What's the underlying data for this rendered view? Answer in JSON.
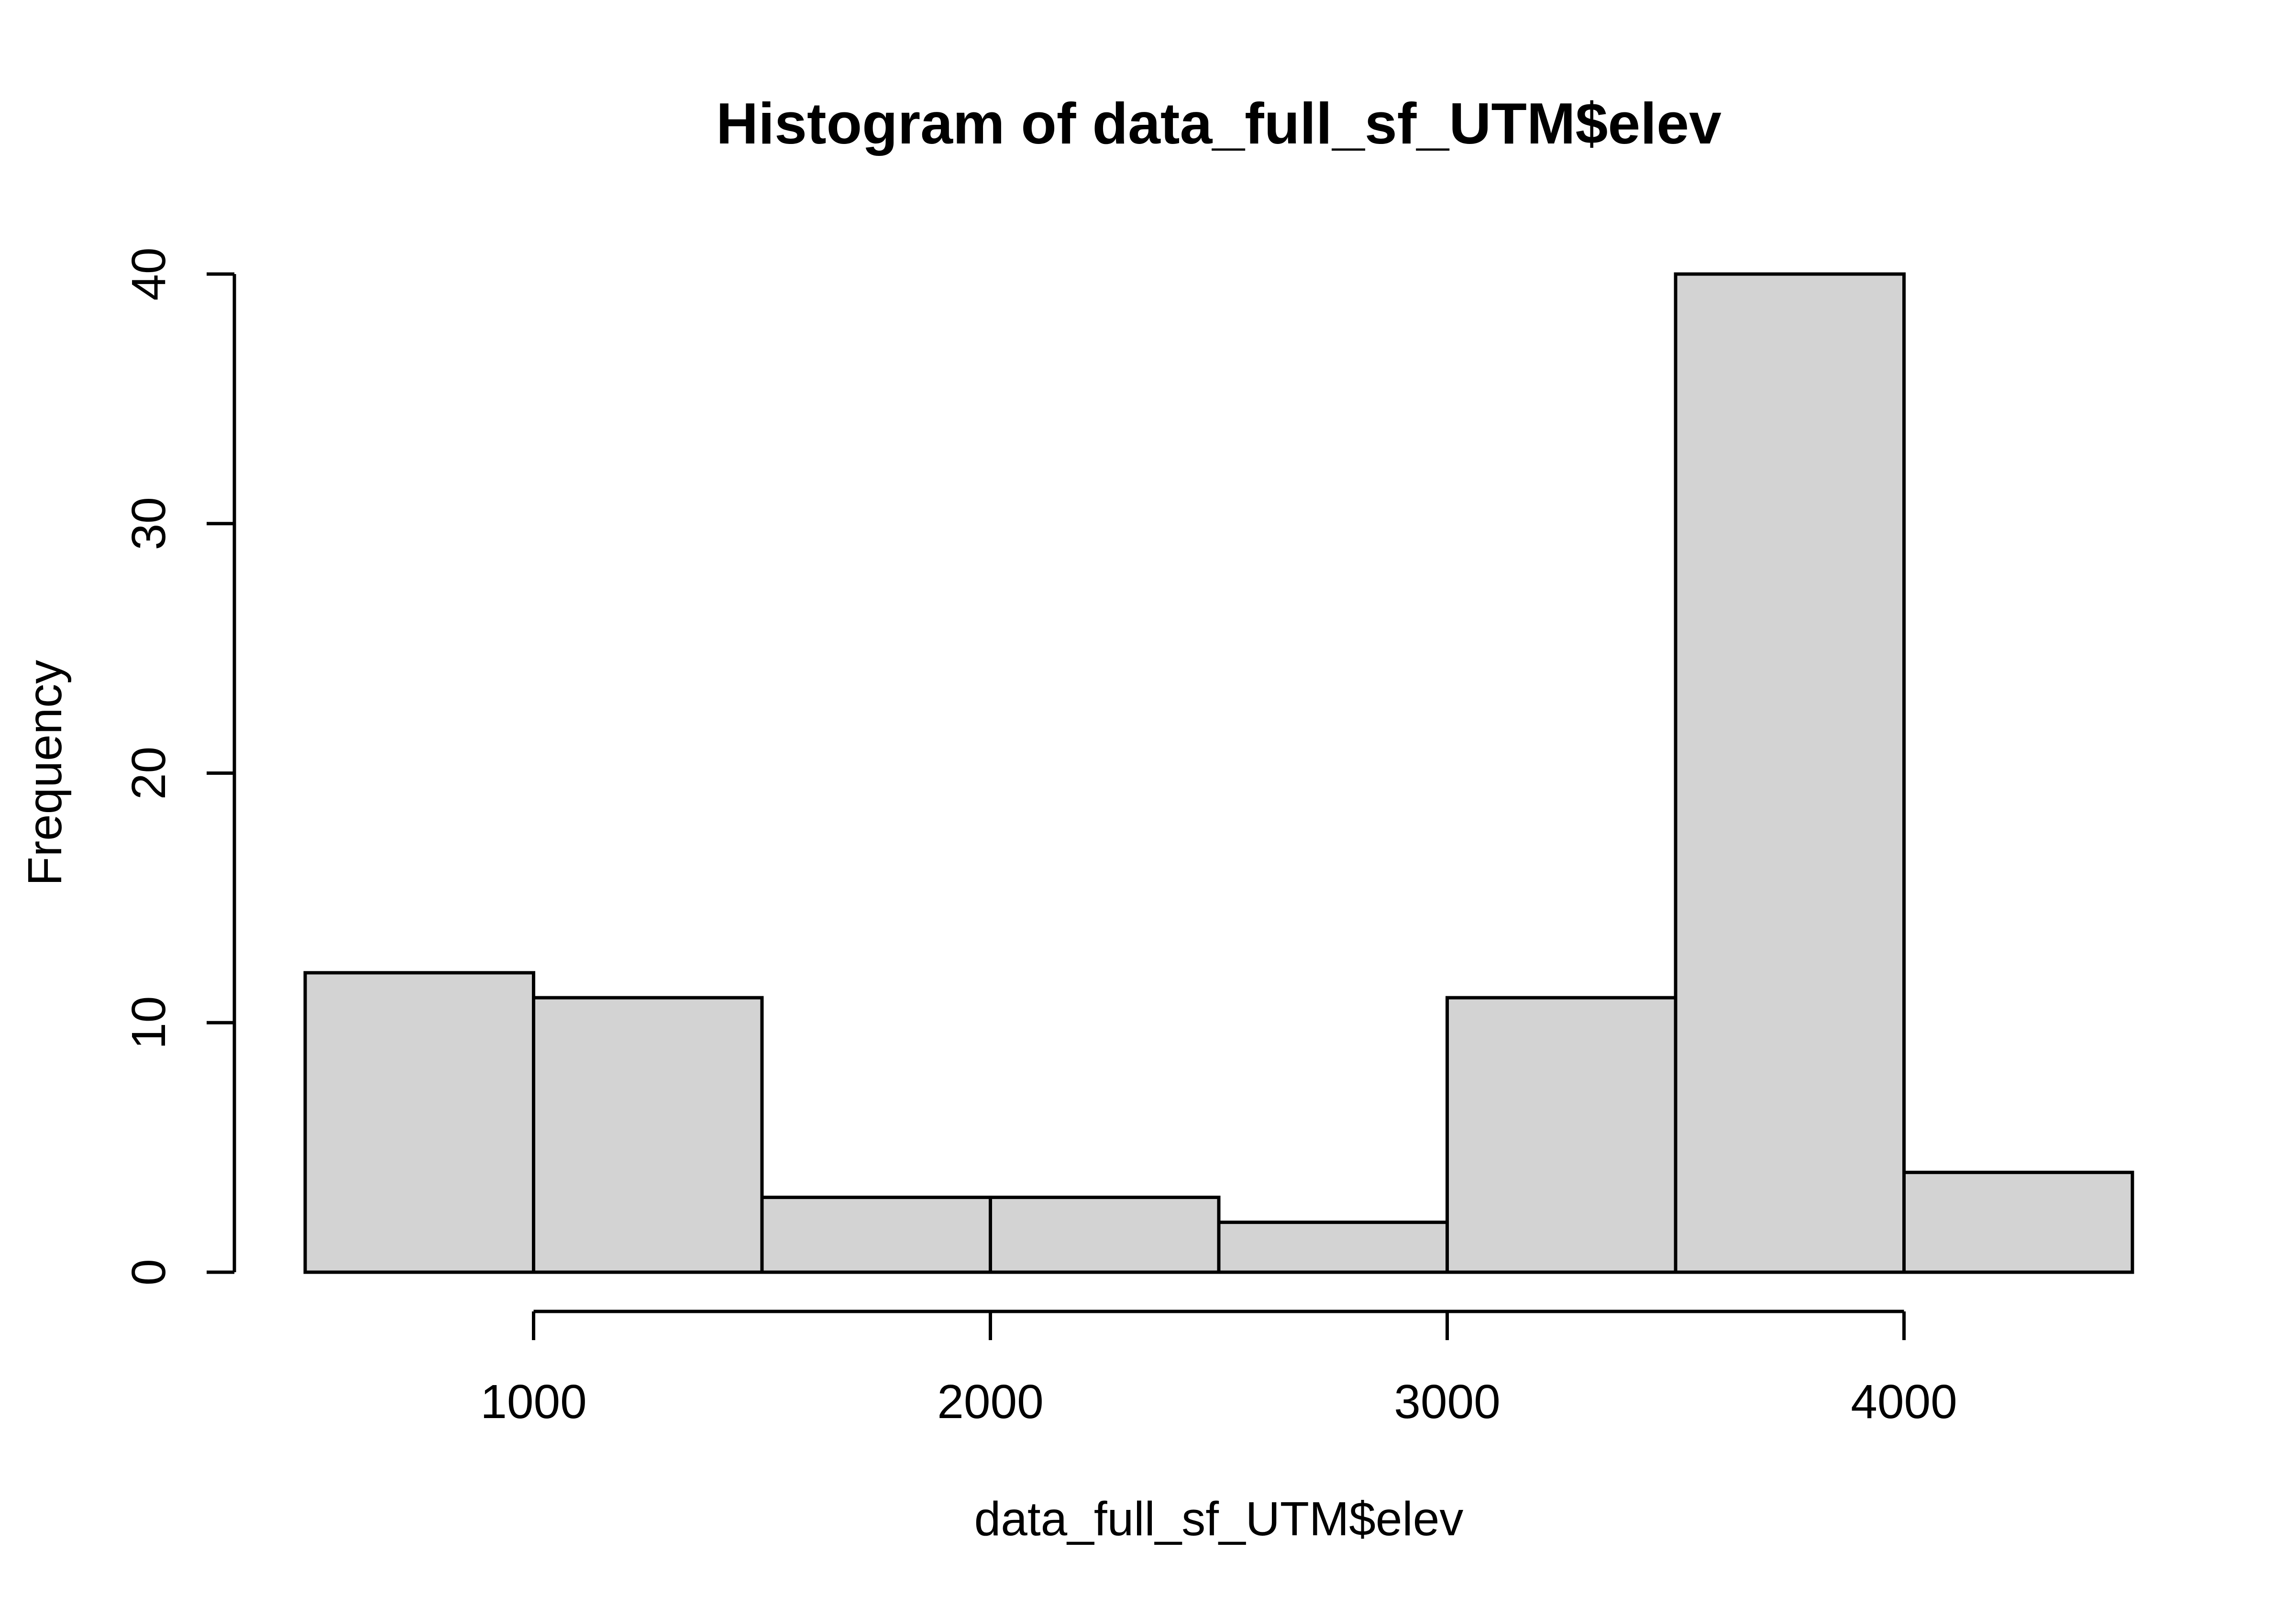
{
  "chart_data": {
    "type": "bar",
    "subtype": "histogram",
    "title": "Histogram of data_full_sf_UTM$elev",
    "xlabel": "data_full_sf_UTM$elev",
    "ylabel": "Frequency",
    "bin_edges": [
      500,
      1000,
      1500,
      2000,
      2500,
      3000,
      3500,
      4000,
      4500
    ],
    "counts": [
      12,
      11,
      3,
      3,
      2,
      11,
      40,
      4
    ],
    "x_ticks": [
      1000,
      2000,
      3000,
      4000
    ],
    "y_ticks": [
      0,
      10,
      20,
      30,
      40
    ],
    "xlim": [
      500,
      4500
    ],
    "ylim": [
      0,
      40
    ],
    "grid": false,
    "legend": false,
    "colors": {
      "bar_fill": "#d3d3d3",
      "bar_stroke": "#000000",
      "axis": "#000000",
      "text": "#000000",
      "background": "#ffffff"
    }
  }
}
